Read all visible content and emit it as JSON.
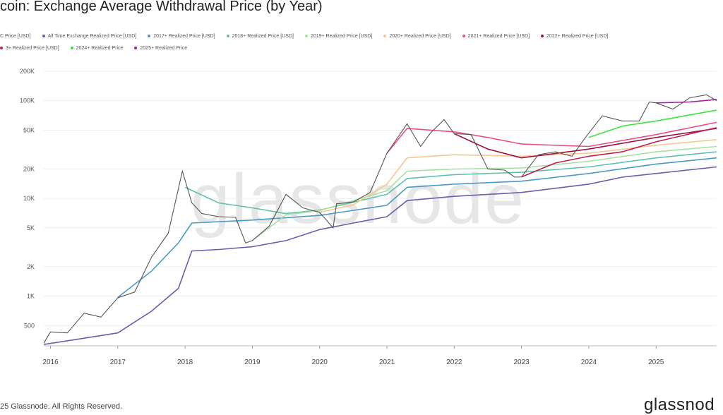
{
  "chart_data": {
    "type": "line",
    "title": "coin: Exchange Average Withdrawal Price (by Year)",
    "y_scale": "log",
    "ylim": [
      310,
      200000
    ],
    "xlim": [
      2015.9,
      2025.9
    ],
    "y_ticks": [
      {
        "v": 500,
        "label": "500"
      },
      {
        "v": 1000,
        "label": "1K"
      },
      {
        "v": 2000,
        "label": "2K"
      },
      {
        "v": 5000,
        "label": "5K"
      },
      {
        "v": 10000,
        "label": "10K"
      },
      {
        "v": 20000,
        "label": "20K"
      },
      {
        "v": 50000,
        "label": "50K"
      },
      {
        "v": 100000,
        "label": "100K"
      },
      {
        "v": 200000,
        "label": "200K"
      }
    ],
    "x_ticks": [
      {
        "v": 2016,
        "label": "2016"
      },
      {
        "v": 2017,
        "label": "2017"
      },
      {
        "v": 2018,
        "label": "2018"
      },
      {
        "v": 2019,
        "label": "2019"
      },
      {
        "v": 2020,
        "label": "2020"
      },
      {
        "v": 2021,
        "label": "2021"
      },
      {
        "v": 2022,
        "label": "2022"
      },
      {
        "v": 2023,
        "label": "2023"
      },
      {
        "v": 2024,
        "label": "2024"
      },
      {
        "v": 2025,
        "label": "2025"
      }
    ],
    "grid": true,
    "legend_position": "top",
    "series": [
      {
        "name": "C Price [USD]",
        "color": "#555555",
        "x": [
          2015.9,
          2016.0,
          2016.25,
          2016.5,
          2016.75,
          2017.0,
          2017.25,
          2017.5,
          2017.75,
          2017.96,
          2018.1,
          2018.25,
          2018.5,
          2018.75,
          2018.9,
          2019.0,
          2019.25,
          2019.5,
          2019.75,
          2020.0,
          2020.2,
          2020.25,
          2020.5,
          2020.75,
          2021.0,
          2021.3,
          2021.5,
          2021.65,
          2021.85,
          2022.0,
          2022.25,
          2022.5,
          2022.75,
          2022.9,
          2023.0,
          2023.25,
          2023.5,
          2023.75,
          2023.95,
          2024.2,
          2024.5,
          2024.75,
          2024.9,
          2025.0,
          2025.25,
          2025.5,
          2025.75,
          2025.9
        ],
        "y": [
          330,
          430,
          420,
          670,
          610,
          960,
          1100,
          2500,
          4400,
          19000,
          9000,
          7000,
          6500,
          6400,
          3500,
          3700,
          5200,
          11000,
          8000,
          7200,
          5000,
          8800,
          9200,
          11500,
          29000,
          58000,
          34000,
          47000,
          64000,
          46000,
          45000,
          20000,
          19500,
          16500,
          16600,
          28000,
          30000,
          27000,
          42000,
          70000,
          62000,
          62000,
          97000,
          95000,
          82000,
          107000,
          115000,
          100000
        ]
      },
      {
        "name": "All Time Exchange Realized Price [USD]",
        "color": "#6a5fa8",
        "x": [
          2015.9,
          2017,
          2017.5,
          2017.9,
          2018.1,
          2018.5,
          2019,
          2019.5,
          2020,
          2020.5,
          2021,
          2021.3,
          2022,
          2023,
          2024,
          2024.5,
          2025,
          2025.9
        ],
        "y": [
          320,
          420,
          700,
          1200,
          2900,
          3000,
          3200,
          3700,
          4800,
          5600,
          6500,
          9500,
          10500,
          11500,
          14000,
          16500,
          18000,
          21000
        ]
      },
      {
        "name": "2017+ Realized Price [USD]",
        "color": "#4a9ac8",
        "x": [
          2017,
          2017.5,
          2017.9,
          2018.1,
          2019,
          2020,
          2021,
          2021.3,
          2022,
          2023,
          2024,
          2025,
          2025.9
        ],
        "y": [
          970,
          1800,
          3500,
          5600,
          6000,
          6700,
          8500,
          13000,
          14000,
          15000,
          18000,
          22500,
          26000
        ]
      },
      {
        "name": "2018+ Realized Price [USD]",
        "color": "#5fc0b0",
        "x": [
          2018,
          2018.5,
          2019,
          2019.5,
          2020,
          2021,
          2021.3,
          2022,
          2023,
          2024,
          2025,
          2025.9
        ],
        "y": [
          13000,
          9000,
          8000,
          7000,
          7600,
          11000,
          16000,
          17500,
          18500,
          21000,
          26000,
          30000
        ]
      },
      {
        "name": "2019+ Realized Price [USD]",
        "color": "#a8e0a0",
        "x": [
          2019,
          2019.5,
          2020,
          2021,
          2021.3,
          2022,
          2023,
          2024,
          2025,
          2025.9
        ],
        "y": [
          3700,
          6800,
          7500,
          12000,
          19000,
          20000,
          20500,
          24000,
          30000,
          34000
        ]
      },
      {
        "name": "2020+ Realized Price [USD]",
        "color": "#f5c890",
        "x": [
          2020,
          2020.5,
          2021,
          2021.3,
          2022,
          2023,
          2024,
          2025,
          2025.9
        ],
        "y": [
          7200,
          8600,
          14000,
          26000,
          28000,
          27000,
          29000,
          35000,
          40000
        ]
      },
      {
        "name": "2021+ Realized Price [USD]",
        "color": "#e85080",
        "x": [
          2021,
          2021.3,
          2022,
          2022.5,
          2023,
          2024,
          2025,
          2025.9
        ],
        "y": [
          29000,
          52000,
          48000,
          42000,
          36000,
          34000,
          45000,
          60000
        ]
      },
      {
        "name": "2022+ Realized Price [USD]",
        "color": "#a01040",
        "x": [
          2022,
          2022.5,
          2023,
          2024,
          2025,
          2025.9
        ],
        "y": [
          46000,
          32000,
          26000,
          32000,
          42000,
          52000
        ]
      },
      {
        "name": "3+ Realized Price [USD]",
        "color": "#c02050",
        "x": [
          2023,
          2023.5,
          2024,
          2024.5,
          2025,
          2025.9
        ],
        "y": [
          16600,
          23000,
          27000,
          30000,
          38000,
          53000
        ]
      },
      {
        "name": "2024+ Realized Price",
        "color": "#40e040",
        "x": [
          2024,
          2024.5,
          2025,
          2025.9
        ],
        "y": [
          42000,
          55000,
          62000,
          80000
        ]
      },
      {
        "name": "2025+ Realized Price",
        "color": "#a020a0",
        "x": [
          2025,
          2025.5,
          2025.9
        ],
        "y": [
          95000,
          97000,
          103000
        ]
      }
    ]
  },
  "watermark": "glassnode",
  "footer": "25 Glassnode. All Rights Reserved.",
  "logo": "glassnod"
}
